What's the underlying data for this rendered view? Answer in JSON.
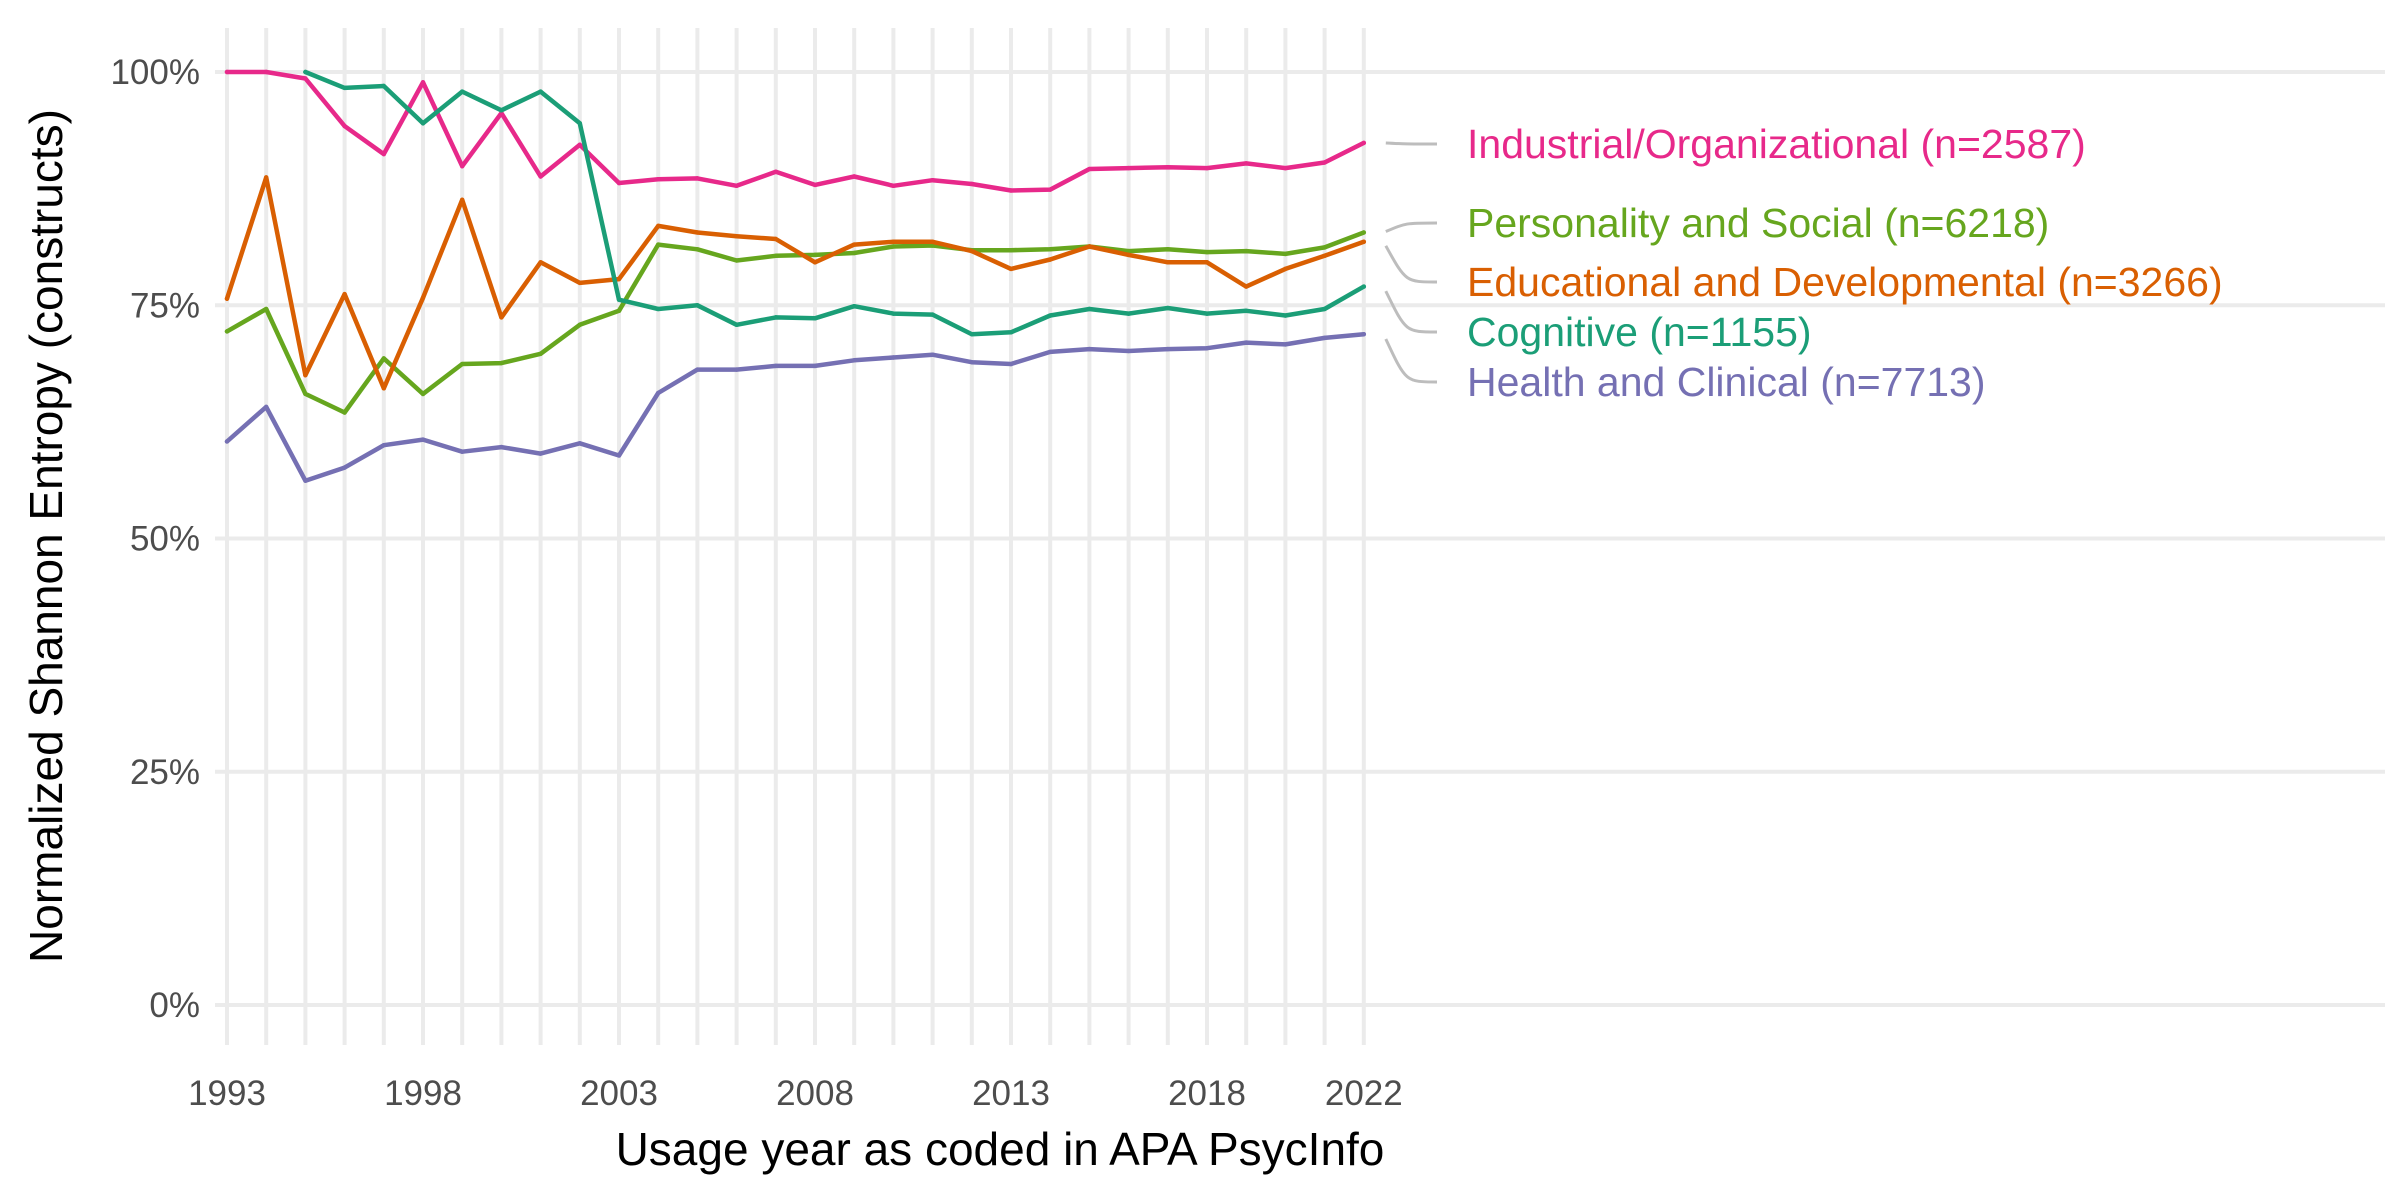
{
  "chart_data": {
    "type": "line",
    "title": "",
    "xlabel": "Usage year as coded in APA PsycInfo",
    "ylabel": "Normalized Shannon Entropy (constructs)",
    "xlim": [
      1993,
      2022
    ],
    "ylim": [
      0,
      100
    ],
    "x_ticks": [
      1993,
      1998,
      2003,
      2008,
      2013,
      2018,
      2022
    ],
    "y_ticks": [
      {
        "value": 0,
        "label": "0%"
      },
      {
        "value": 25,
        "label": "25%"
      },
      {
        "value": 50,
        "label": "50%"
      },
      {
        "value": 75,
        "label": "75%"
      },
      {
        "value": 100,
        "label": "100%"
      }
    ],
    "grid": true,
    "legend": "direct labels at right end of lines",
    "series": [
      {
        "name": "Industrial/Organizational (n=2587)",
        "color": "#e7298a",
        "x": [
          1993,
          1994,
          1995,
          1996,
          1997,
          1998,
          1999,
          2000,
          2001,
          2002,
          2003,
          2004,
          2005,
          2006,
          2007,
          2008,
          2009,
          2010,
          2011,
          2012,
          2013,
          2014,
          2015,
          2016,
          2017,
          2018,
          2019,
          2020,
          2021,
          2022
        ],
        "values": [
          100,
          100,
          99.3,
          94.2,
          91.2,
          98.9,
          89.9,
          95.6,
          88.8,
          92.2,
          88.1,
          88.5,
          88.6,
          87.8,
          89.3,
          87.9,
          88.8,
          87.8,
          88.4,
          88,
          87.3,
          87.4,
          89.6,
          89.7,
          89.8,
          89.7,
          90.2,
          89.7,
          90.3,
          92.4
        ]
      },
      {
        "name": "Personality and Social (n=6218)",
        "color": "#66a61e",
        "x": [
          1993,
          1994,
          1995,
          1996,
          1997,
          1998,
          1999,
          2000,
          2001,
          2002,
          2003,
          2004,
          2005,
          2006,
          2007,
          2008,
          2009,
          2010,
          2011,
          2012,
          2013,
          2014,
          2015,
          2016,
          2017,
          2018,
          2019,
          2020,
          2021,
          2022
        ],
        "values": [
          72.2,
          74.6,
          65.5,
          63.5,
          69.3,
          65.5,
          68.7,
          68.8,
          69.8,
          72.9,
          74.4,
          81.5,
          81,
          79.8,
          80.3,
          80.4,
          80.6,
          81.3,
          81.4,
          80.9,
          80.9,
          81,
          81.3,
          80.8,
          81,
          80.7,
          80.8,
          80.5,
          81.2,
          82.8
        ]
      },
      {
        "name": "Educational and Developmental (n=3266)",
        "color": "#d95f02",
        "x": [
          1993,
          1994,
          1995,
          1996,
          1997,
          1998,
          1999,
          2000,
          2001,
          2002,
          2003,
          2004,
          2005,
          2006,
          2007,
          2008,
          2009,
          2010,
          2011,
          2012,
          2013,
          2014,
          2015,
          2016,
          2017,
          2018,
          2019,
          2020,
          2021,
          2022
        ],
        "values": [
          75.7,
          88.7,
          67.5,
          76.2,
          66.1,
          75.8,
          86.3,
          73.7,
          79.6,
          77.4,
          77.8,
          83.5,
          82.8,
          82.4,
          82.1,
          79.6,
          81.5,
          81.8,
          81.8,
          80.8,
          78.9,
          79.9,
          81.3,
          80.4,
          79.6,
          79.6,
          77,
          78.9,
          80.3,
          81.8
        ]
      },
      {
        "name": "Cognitive (n=1155)",
        "color": "#1b9e77",
        "x": [
          1995,
          1996,
          1997,
          1998,
          1999,
          2000,
          2001,
          2002,
          2003,
          2004,
          2005,
          2006,
          2007,
          2008,
          2009,
          2010,
          2011,
          2012,
          2013,
          2014,
          2015,
          2016,
          2017,
          2018,
          2019,
          2020,
          2021,
          2022
        ],
        "values": [
          100,
          98.3,
          98.5,
          94.5,
          97.9,
          95.9,
          97.9,
          94.5,
          75.6,
          74.6,
          75,
          72.9,
          73.7,
          73.6,
          74.9,
          74.1,
          74,
          71.9,
          72.1,
          73.9,
          74.6,
          74.1,
          74.7,
          74.1,
          74.4,
          73.9,
          74.6,
          77
        ]
      },
      {
        "name": "Health and Clinical (n=7713)",
        "color": "#7570b3",
        "x": [
          1993,
          1994,
          1995,
          1996,
          1997,
          1998,
          1999,
          2000,
          2001,
          2002,
          2003,
          2004,
          2005,
          2006,
          2007,
          2008,
          2009,
          2010,
          2011,
          2012,
          2013,
          2014,
          2015,
          2016,
          2017,
          2018,
          2019,
          2020,
          2021,
          2022
        ],
        "values": [
          60.4,
          64.1,
          56.2,
          57.6,
          60,
          60.6,
          59.3,
          59.8,
          59.1,
          60.2,
          58.9,
          65.6,
          68.1,
          68.1,
          68.5,
          68.5,
          69.1,
          69.4,
          69.7,
          68.9,
          68.7,
          70,
          70.3,
          70.1,
          70.3,
          70.4,
          71,
          70.8,
          71.5,
          71.9
        ]
      }
    ]
  }
}
